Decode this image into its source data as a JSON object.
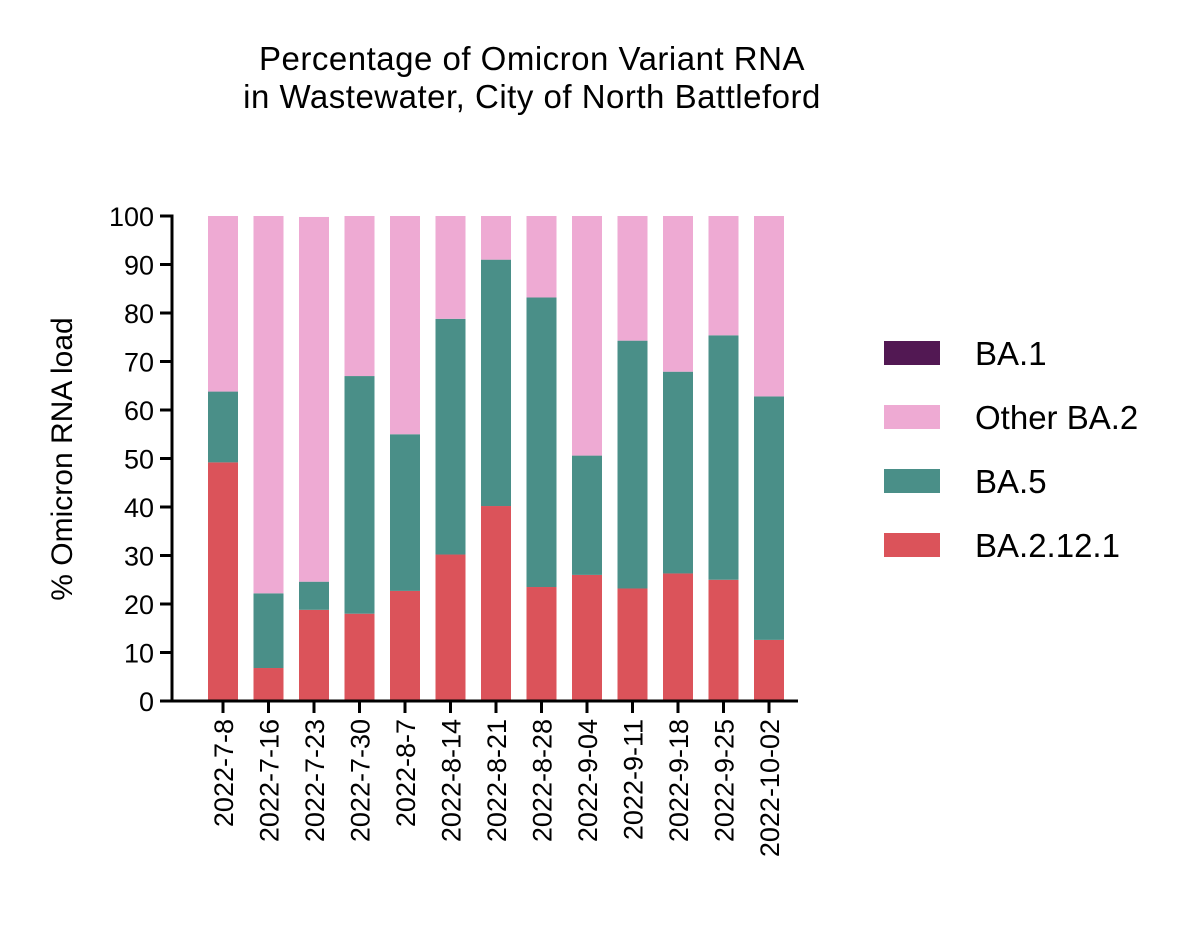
{
  "chart_data": {
    "type": "bar",
    "stacked": true,
    "title": [
      "Percentage of Omicron Variant RNA",
      "in Wastewater, City of North Battleford"
    ],
    "xlabel": "",
    "ylabel": "% Omicron RNA load",
    "ylim": [
      0,
      100
    ],
    "yticks": [
      0,
      10,
      20,
      30,
      40,
      50,
      60,
      70,
      80,
      90,
      100
    ],
    "grid": false,
    "legend_position": "right",
    "categories": [
      "2022-7-8",
      "2022-7-16",
      "2022-7-23",
      "2022-7-30",
      "2022-8-7",
      "2022-8-14",
      "2022-8-21",
      "2022-8-28",
      "2022-9-04",
      "2022-9-11",
      "2022-9-18",
      "2022-9-25",
      "2022-10-02"
    ],
    "series": [
      {
        "name": "BA.2.12.1",
        "color": "#db535a",
        "values": [
          49.2,
          6.8,
          18.8,
          18.0,
          22.7,
          30.2,
          40.2,
          23.5,
          26.0,
          23.2,
          26.3,
          25.0,
          12.6
        ]
      },
      {
        "name": "BA.5",
        "color": "#4a8f88",
        "values": [
          14.6,
          15.4,
          5.8,
          49.0,
          32.3,
          48.6,
          50.8,
          59.7,
          24.6,
          51.1,
          41.6,
          50.4,
          50.2
        ]
      },
      {
        "name": "Other BA.2",
        "color": "#eeaad3",
        "values": [
          36.2,
          77.8,
          75.2,
          33.0,
          45.0,
          21.2,
          9.0,
          16.8,
          49.4,
          25.7,
          32.1,
          24.6,
          37.2
        ]
      },
      {
        "name": "BA.1",
        "color": "#521853",
        "values": [
          0,
          0,
          0,
          0,
          0,
          0,
          0,
          0,
          0,
          0,
          0,
          0,
          0
        ]
      }
    ],
    "legend_order": [
      "BA.1",
      "Other BA.2",
      "BA.5",
      "BA.2.12.1"
    ]
  }
}
